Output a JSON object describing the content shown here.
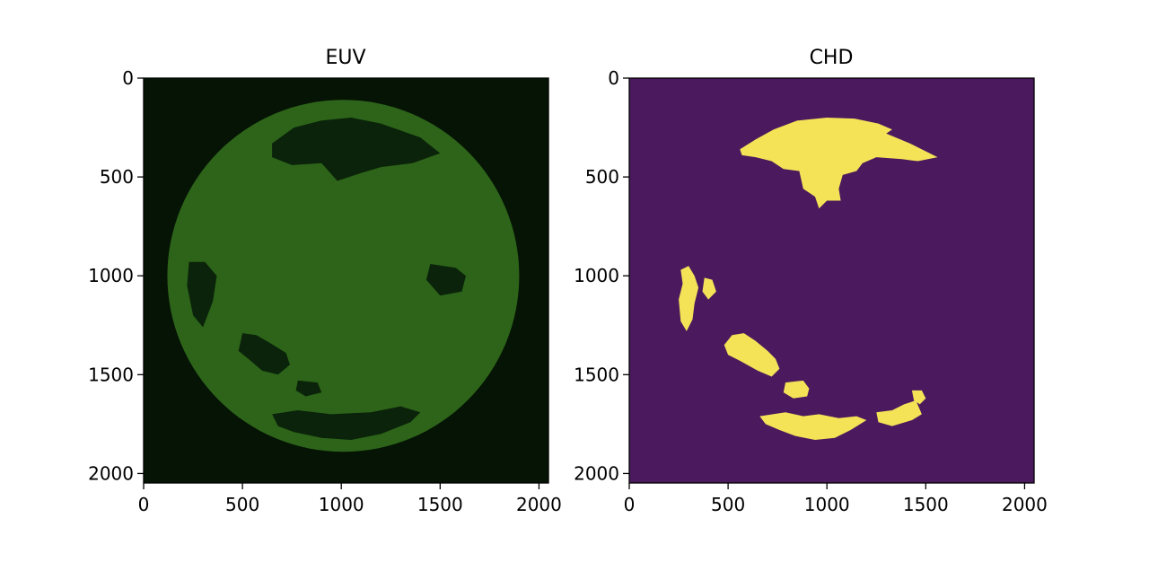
{
  "colors": {
    "euv_background": "#051405",
    "euv_disk": "#2d6419",
    "euv_hole": "#0a230a",
    "chd_background": "#4b1a5e",
    "chd_detection": "#f4e257",
    "axis": "#000000"
  },
  "chart_data": [
    {
      "type": "heatmap",
      "title": "EUV",
      "xlabel": "",
      "ylabel": "",
      "xlim": [
        0,
        2048
      ],
      "ylim": [
        2048,
        0
      ],
      "xticks": [
        0,
        500,
        1000,
        1500,
        2000
      ],
      "yticks": [
        0,
        500,
        1000,
        1500,
        2000
      ],
      "grid": false,
      "image_description": "Solar EUV image in green tones: bright disk with darker coronal hole regions",
      "disk": {
        "center": [
          1010,
          1000
        ],
        "radius": 890
      },
      "regions": [
        {
          "name": "north-polar-hole",
          "points": [
            [
              650,
              330
            ],
            [
              760,
              250
            ],
            [
              900,
              215
            ],
            [
              1050,
              200
            ],
            [
              1200,
              230
            ],
            [
              1400,
              300
            ],
            [
              1500,
              380
            ],
            [
              1360,
              430
            ],
            [
              1200,
              450
            ],
            [
              1100,
              480
            ],
            [
              980,
              520
            ],
            [
              900,
              430
            ],
            [
              750,
              440
            ],
            [
              650,
              400
            ]
          ]
        },
        {
          "name": "west-limb-hole-a",
          "points": [
            [
              230,
              930
            ],
            [
              310,
              930
            ],
            [
              370,
              1000
            ],
            [
              350,
              1130
            ],
            [
              300,
              1260
            ],
            [
              250,
              1200
            ],
            [
              220,
              1050
            ]
          ]
        },
        {
          "name": "south-west-hole",
          "points": [
            [
              500,
              1290
            ],
            [
              570,
              1300
            ],
            [
              640,
              1340
            ],
            [
              720,
              1390
            ],
            [
              740,
              1450
            ],
            [
              680,
              1500
            ],
            [
              600,
              1480
            ],
            [
              530,
              1420
            ],
            [
              480,
              1380
            ]
          ]
        },
        {
          "name": "south-mid-hole",
          "points": [
            [
              780,
              1530
            ],
            [
              880,
              1540
            ],
            [
              900,
              1590
            ],
            [
              820,
              1610
            ],
            [
              770,
              1580
            ]
          ]
        },
        {
          "name": "south-polar-hole",
          "points": [
            [
              650,
              1700
            ],
            [
              780,
              1680
            ],
            [
              950,
              1700
            ],
            [
              1150,
              1690
            ],
            [
              1300,
              1660
            ],
            [
              1400,
              1690
            ],
            [
              1350,
              1740
            ],
            [
              1200,
              1800
            ],
            [
              1050,
              1830
            ],
            [
              900,
              1820
            ],
            [
              760,
              1790
            ],
            [
              680,
              1760
            ]
          ]
        },
        {
          "name": "east-hole",
          "points": [
            [
              1450,
              940
            ],
            [
              1580,
              960
            ],
            [
              1630,
              1000
            ],
            [
              1610,
              1080
            ],
            [
              1500,
              1100
            ],
            [
              1430,
              1020
            ]
          ]
        }
      ]
    },
    {
      "type": "heatmap",
      "title": "CHD",
      "xlabel": "",
      "ylabel": "",
      "xlim": [
        0,
        2048
      ],
      "ylim": [
        2048,
        0
      ],
      "xticks": [
        0,
        500,
        1000,
        1500,
        2000
      ],
      "yticks": [
        0,
        500,
        1000,
        1500,
        2000
      ],
      "grid": false,
      "image_description": "Binary coronal hole detection mask: yellow detected regions on purple background",
      "regions": [
        {
          "name": "north-polar-detection",
          "points": [
            [
              560,
              360
            ],
            [
              640,
              310
            ],
            [
              730,
              260
            ],
            [
              850,
              215
            ],
            [
              1000,
              200
            ],
            [
              1140,
              205
            ],
            [
              1260,
              230
            ],
            [
              1330,
              260
            ],
            [
              1300,
              280
            ],
            [
              1420,
              330
            ],
            [
              1560,
              400
            ],
            [
              1460,
              420
            ],
            [
              1380,
              410
            ],
            [
              1250,
              400
            ],
            [
              1180,
              430
            ],
            [
              1150,
              470
            ],
            [
              1080,
              490
            ],
            [
              1060,
              560
            ],
            [
              1070,
              620
            ],
            [
              1000,
              620
            ],
            [
              960,
              660
            ],
            [
              940,
              600
            ],
            [
              880,
              560
            ],
            [
              860,
              470
            ],
            [
              780,
              460
            ],
            [
              720,
              420
            ],
            [
              640,
              400
            ],
            [
              570,
              390
            ]
          ]
        },
        {
          "name": "west-detection-a",
          "points": [
            [
              260,
              970
            ],
            [
              300,
              950
            ],
            [
              330,
              1000
            ],
            [
              350,
              1060
            ],
            [
              330,
              1140
            ],
            [
              320,
              1220
            ],
            [
              290,
              1280
            ],
            [
              260,
              1230
            ],
            [
              250,
              1120
            ],
            [
              270,
              1040
            ]
          ]
        },
        {
          "name": "west-detection-b",
          "points": [
            [
              380,
              1010
            ],
            [
              420,
              1020
            ],
            [
              440,
              1080
            ],
            [
              400,
              1120
            ],
            [
              370,
              1080
            ]
          ]
        },
        {
          "name": "south-west-detection",
          "points": [
            [
              520,
              1300
            ],
            [
              580,
              1290
            ],
            [
              640,
              1330
            ],
            [
              700,
              1380
            ],
            [
              740,
              1420
            ],
            [
              760,
              1470
            ],
            [
              720,
              1510
            ],
            [
              650,
              1480
            ],
            [
              560,
              1430
            ],
            [
              500,
              1400
            ],
            [
              480,
              1350
            ]
          ]
        },
        {
          "name": "south-mid-detection",
          "points": [
            [
              790,
              1540
            ],
            [
              880,
              1530
            ],
            [
              910,
              1570
            ],
            [
              900,
              1610
            ],
            [
              830,
              1620
            ],
            [
              780,
              1590
            ]
          ]
        },
        {
          "name": "south-polar-detection",
          "points": [
            [
              660,
              1710
            ],
            [
              790,
              1690
            ],
            [
              880,
              1710
            ],
            [
              960,
              1700
            ],
            [
              1060,
              1720
            ],
            [
              1150,
              1710
            ],
            [
              1200,
              1730
            ],
            [
              1120,
              1780
            ],
            [
              1040,
              1820
            ],
            [
              940,
              1830
            ],
            [
              840,
              1810
            ],
            [
              760,
              1780
            ],
            [
              690,
              1750
            ]
          ]
        },
        {
          "name": "south-east-detection",
          "points": [
            [
              1250,
              1690
            ],
            [
              1330,
              1680
            ],
            [
              1390,
              1650
            ],
            [
              1450,
              1630
            ],
            [
              1480,
              1700
            ],
            [
              1430,
              1730
            ],
            [
              1330,
              1760
            ],
            [
              1260,
              1740
            ]
          ]
        },
        {
          "name": "east-detection",
          "points": [
            [
              1430,
              1580
            ],
            [
              1480,
              1580
            ],
            [
              1500,
              1620
            ],
            [
              1470,
              1650
            ],
            [
              1440,
              1630
            ]
          ]
        }
      ]
    }
  ]
}
